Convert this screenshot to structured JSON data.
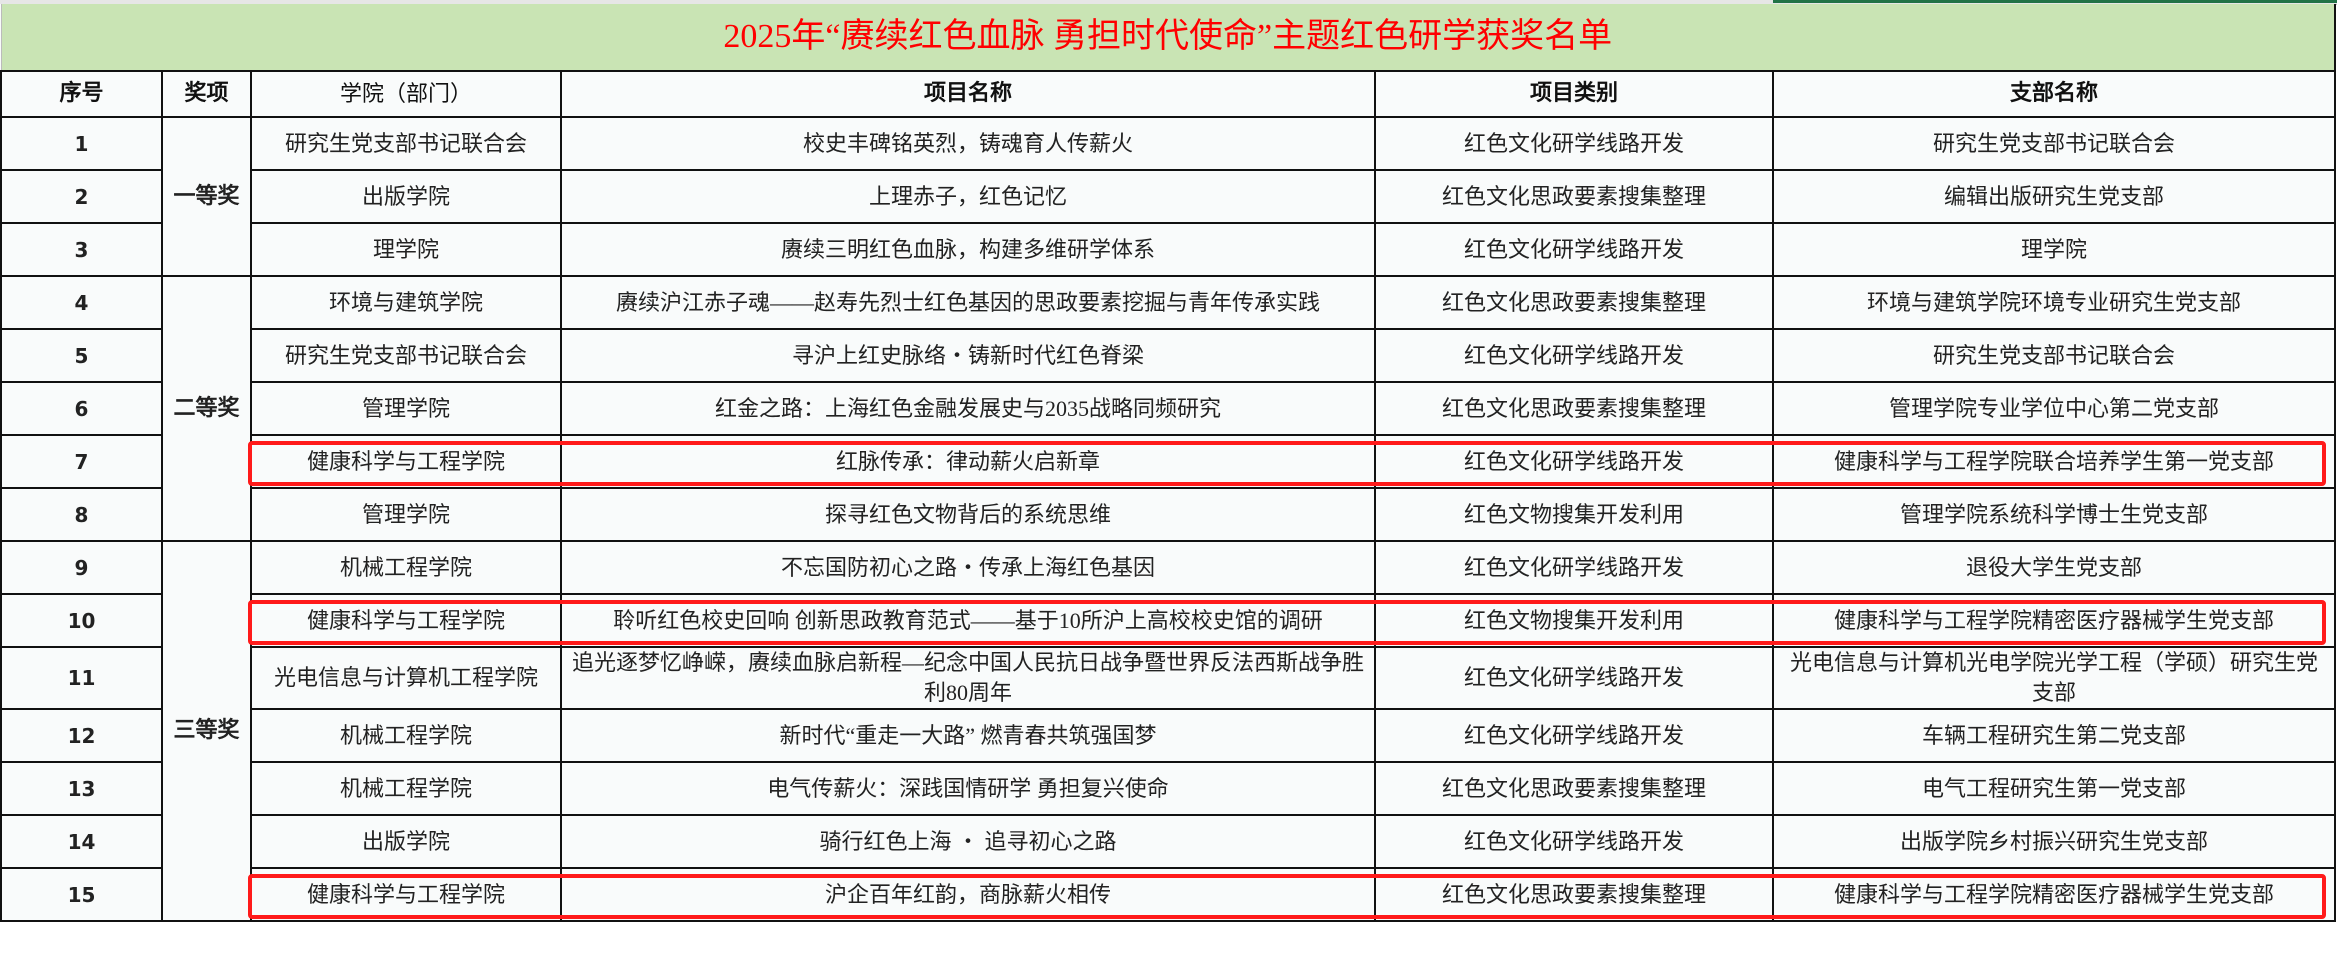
{
  "title": "2025年“赓续红色血脉 勇担时代使命”主题红色研学获奖名单",
  "highlight_color": "#ff1a1a",
  "title_band_color": "#c9e4b4",
  "headers": [
    "序号",
    "奖项",
    "学院（部门）",
    "项目名称",
    "项目类别",
    "支部名称"
  ],
  "awards": [
    {
      "label": "一等奖",
      "rows": 3
    },
    {
      "label": "二等奖",
      "rows": 5
    },
    {
      "label": "三等奖",
      "rows": 7
    }
  ],
  "rows": [
    {
      "no": "1",
      "college": "研究生党支部书记联合会",
      "project": "校史丰碑铭英烈，铸魂育人传薪火",
      "category": "红色文化研学线路开发",
      "branch": "研究生党支部书记联合会",
      "highlighted": false
    },
    {
      "no": "2",
      "college": "出版学院",
      "project": "上理赤子，红色记忆",
      "category": "红色文化思政要素搜集整理",
      "branch": "编辑出版研究生党支部",
      "highlighted": false
    },
    {
      "no": "3",
      "college": "理学院",
      "project": "赓续三明红色血脉，构建多维研学体系",
      "category": "红色文化研学线路开发",
      "branch": "理学院",
      "highlighted": false
    },
    {
      "no": "4",
      "college": "环境与建筑学院",
      "project": "赓续沪江赤子魂——赵寿先烈士红色基因的思政要素挖掘与青年传承实践",
      "category": "红色文化思政要素搜集整理",
      "branch": "环境与建筑学院环境专业研究生党支部",
      "highlighted": false
    },
    {
      "no": "5",
      "college": "研究生党支部书记联合会",
      "project": "寻沪上红史脉络・铸新时代红色脊梁",
      "category": "红色文化研学线路开发",
      "branch": "研究生党支部书记联合会",
      "highlighted": false
    },
    {
      "no": "6",
      "college": "管理学院",
      "project": "红金之路：上海红色金融发展史与2035战略同频研究",
      "category": "红色文化思政要素搜集整理",
      "branch": "管理学院专业学位中心第二党支部",
      "highlighted": false
    },
    {
      "no": "7",
      "college": "健康科学与工程学院",
      "project": "红脉传承：律动薪火启新章",
      "category": "红色文化研学线路开发",
      "branch": "健康科学与工程学院联合培养学生第一党支部",
      "highlighted": true
    },
    {
      "no": "8",
      "college": "管理学院",
      "project": "探寻红色文物背后的系统思维",
      "category": "红色文物搜集开发利用",
      "branch": "管理学院系统科学博士生党支部",
      "highlighted": false
    },
    {
      "no": "9",
      "college": "机械工程学院",
      "project": "不忘国防初心之路・传承上海红色基因",
      "category": "红色文化研学线路开发",
      "branch": "退役大学生党支部",
      "highlighted": false
    },
    {
      "no": "10",
      "college": "健康科学与工程学院",
      "project": "聆听红色校史回响 创新思政教育范式——基于10所沪上高校校史馆的调研",
      "category": "红色文物搜集开发利用",
      "branch": "健康科学与工程学院精密医疗器械学生党支部",
      "highlighted": true
    },
    {
      "no": "11",
      "college": "光电信息与计算机工程学院",
      "project": "追光逐梦忆峥嵘，赓续血脉启新程—纪念中国人民抗日战争暨世界反法西斯战争胜利80周年",
      "category": "红色文化研学线路开发",
      "branch": "光电信息与计算机光电学院光学工程（学硕）研究生党支部",
      "highlighted": false
    },
    {
      "no": "12",
      "college": "机械工程学院",
      "project": "新时代“重走一大路” 燃青春共筑强国梦",
      "category": "红色文化研学线路开发",
      "branch": "车辆工程研究生第二党支部",
      "highlighted": false
    },
    {
      "no": "13",
      "college": "机械工程学院",
      "project": "电气传薪火：深践国情研学 勇担复兴使命",
      "category": "红色文化思政要素搜集整理",
      "branch": "电气工程研究生第一党支部",
      "highlighted": false
    },
    {
      "no": "14",
      "college": "出版学院",
      "project": "骑行红色上海 ・ 追寻初心之路",
      "category": "红色文化研学线路开发",
      "branch": "出版学院乡村振兴研究生党支部",
      "highlighted": false
    },
    {
      "no": "15",
      "college": "健康科学与工程学院",
      "project": "沪企百年红韵，商脉薪火相传",
      "category": "红色文化思政要素搜集整理",
      "branch": "健康科学与工程学院精密医疗器械学生党支部",
      "highlighted": true
    }
  ]
}
